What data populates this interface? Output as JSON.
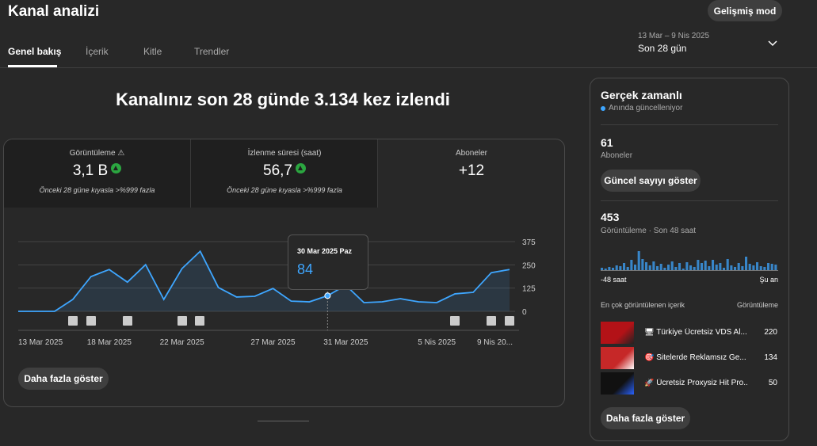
{
  "header": {
    "title": "Kanal analizi",
    "advanced_button": "Gelişmiş mod"
  },
  "tabs": [
    "Genel bakış",
    "İçerik",
    "Kitle",
    "Trendler"
  ],
  "active_tab": 0,
  "date_range": {
    "range": "13 Mar – 9 Nis 2025",
    "label": "Son 28 gün"
  },
  "headline": "Kanalınız son 28 günde 3.134 kez izlendi",
  "metrics": [
    {
      "label": "Görüntüleme",
      "value": "3,1 B",
      "note": "Önceki 28 güne kıyasla >%999 fazla"
    },
    {
      "label": "İzlenme süresi (saat)",
      "value": "56,7",
      "note": "Önceki 28 güne kıyasla >%999 fazla"
    },
    {
      "label": "Aboneler",
      "value": "+12"
    }
  ],
  "chart_data": {
    "type": "line",
    "categories": [
      "13 Mar 2025",
      null,
      null,
      null,
      null,
      "18 Mar 2025",
      null,
      null,
      null,
      "22 Mar 2025",
      null,
      null,
      null,
      null,
      "27 Mar 2025",
      null,
      null,
      null,
      "31 Mar 2025",
      null,
      null,
      null,
      null,
      "5 Nis 2025",
      null,
      null,
      null,
      "9 Nis 20..."
    ],
    "values": [
      0,
      0,
      0,
      64,
      187,
      225,
      157,
      251,
      64,
      230,
      323,
      128,
      77,
      81,
      123,
      55,
      51,
      84,
      140,
      47,
      51,
      68,
      51,
      47,
      94,
      102,
      208,
      225
    ],
    "ylim": [
      0,
      375
    ],
    "yticks": [
      0,
      125,
      250,
      375
    ],
    "color": "#3ea6ff",
    "grid": true,
    "tooltip": {
      "title": "30 Mar 2025 Paz"
    }
  },
  "more_button": "Daha fazla göster",
  "realtime": {
    "title": "Gerçek zamanlı",
    "subtitle": "Anında güncelleniyor",
    "subscribers": {
      "value": 61,
      "label": "Aboneler"
    },
    "show_button": "Güncel sayıyı göster",
    "views": {
      "value": 453,
      "label": "Görüntüleme · Son 48 saat"
    },
    "sparkline": [
      3,
      2,
      4,
      3,
      6,
      5,
      9,
      4,
      13,
      7,
      24,
      14,
      10,
      6,
      11,
      5,
      8,
      3,
      7,
      11,
      4,
      9,
      2,
      10,
      6,
      4,
      13,
      9,
      12,
      5,
      13,
      7,
      9,
      3,
      14,
      6,
      4,
      9,
      5,
      17,
      8,
      6,
      10,
      5,
      4,
      9,
      8,
      7
    ],
    "start_label": "-48 saat",
    "end_label": "Şu an",
    "top_content": {
      "title": "En çok görüntülenen içerik",
      "column": "Görüntüleme",
      "rows": [
        {
          "title": "🖥 Türkiye Ücretsiz VDS Al...",
          "views": 220
        },
        {
          "title": "🎯 Sitelerde Reklamsız Ge...",
          "views": 134
        },
        {
          "title": "🚀 Ücretsiz Proxysiz Hit Pro...",
          "views": 50
        }
      ]
    },
    "more_button": "Daha fazla göster"
  }
}
